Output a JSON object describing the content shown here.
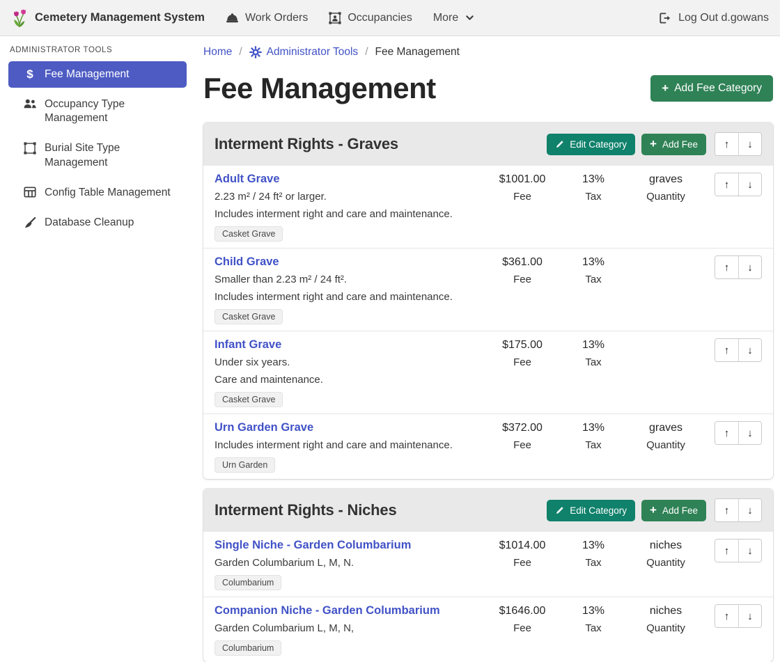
{
  "navbar": {
    "brand": "Cemetery Management System",
    "items": [
      {
        "label": "Work Orders",
        "icon": "hard-hat-icon"
      },
      {
        "label": "Occupancies",
        "icon": "person-frame-icon"
      },
      {
        "label": "More",
        "icon": "chevron-down-icon"
      }
    ],
    "logout_label": "Log Out d.gowans",
    "logout_icon": "logout-icon"
  },
  "sidebar": {
    "heading": "ADMINISTRATOR TOOLS",
    "items": [
      {
        "label": "Fee Management",
        "icon": "dollar-icon",
        "active": true
      },
      {
        "label": "Occupancy Type Management",
        "icon": "people-icon",
        "active": false
      },
      {
        "label": "Burial Site Type Management",
        "icon": "bounding-box-icon",
        "active": false
      },
      {
        "label": "Config Table Management",
        "icon": "table-icon",
        "active": false
      },
      {
        "label": "Database Cleanup",
        "icon": "broom-icon",
        "active": false
      }
    ]
  },
  "breadcrumb": {
    "home": "Home",
    "admin_tools": "Administrator Tools",
    "current": "Fee Management",
    "separator": "/"
  },
  "page": {
    "title": "Fee Management",
    "add_category_label": "Add Fee Category"
  },
  "category_actions": {
    "edit_label": "Edit Category",
    "add_fee_label": "Add Fee"
  },
  "labels": {
    "fee": "Fee",
    "tax": "Tax",
    "quantity": "Quantity"
  },
  "colors": {
    "primary": "#4d5bc3",
    "link": "#4152c6",
    "green": "#2f8256",
    "teal": "#10816b",
    "navbar_bg": "#f2f2f2",
    "card_header_bg": "#e9e9e9"
  },
  "categories": [
    {
      "title": "Interment Rights - Graves",
      "fees": [
        {
          "name": "Adult Grave",
          "descriptions": [
            "2.23 m² / 24 ft² or larger.",
            "Includes interment right and care and maintenance."
          ],
          "badge": "Casket Grave",
          "fee": "$1001.00",
          "tax": "13%",
          "quantity": "graves"
        },
        {
          "name": "Child Grave",
          "descriptions": [
            "Smaller than 2.23 m² / 24 ft².",
            "Includes interment right and care and maintenance."
          ],
          "badge": "Casket Grave",
          "fee": "$361.00",
          "tax": "13%",
          "quantity": null
        },
        {
          "name": "Infant Grave",
          "descriptions": [
            "Under six years.",
            "Care and maintenance."
          ],
          "badge": "Casket Grave",
          "fee": "$175.00",
          "tax": "13%",
          "quantity": null
        },
        {
          "name": "Urn Garden Grave",
          "descriptions": [
            "Includes interment right and care and maintenance."
          ],
          "badge": "Urn Garden",
          "fee": "$372.00",
          "tax": "13%",
          "quantity": "graves"
        }
      ]
    },
    {
      "title": "Interment Rights - Niches",
      "fees": [
        {
          "name": "Single Niche - Garden Columbarium",
          "descriptions": [
            "Garden Columbarium L, M, N."
          ],
          "badge": "Columbarium",
          "fee": "$1014.00",
          "tax": "13%",
          "quantity": "niches"
        },
        {
          "name": "Companion Niche - Garden Columbarium",
          "descriptions": [
            "Garden Columbarium L, M, N,"
          ],
          "badge": "Columbarium",
          "fee": "$1646.00",
          "tax": "13%",
          "quantity": "niches"
        }
      ]
    }
  ]
}
